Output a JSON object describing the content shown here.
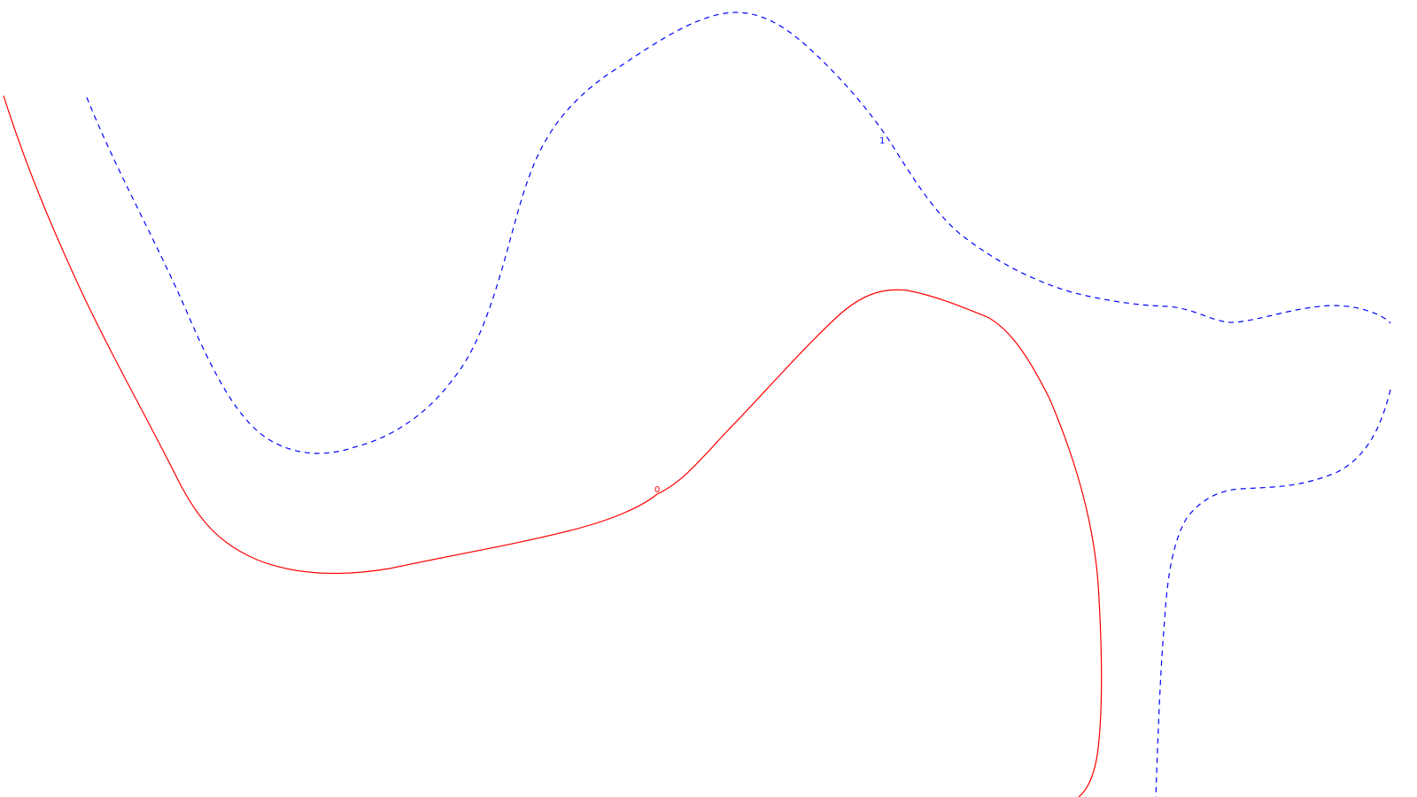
{
  "contours": [
    {
      "label": "0",
      "color": "#ff0000",
      "style": "solid"
    },
    {
      "label": "1",
      "color": "#0000ff",
      "style": "dashed"
    }
  ]
}
